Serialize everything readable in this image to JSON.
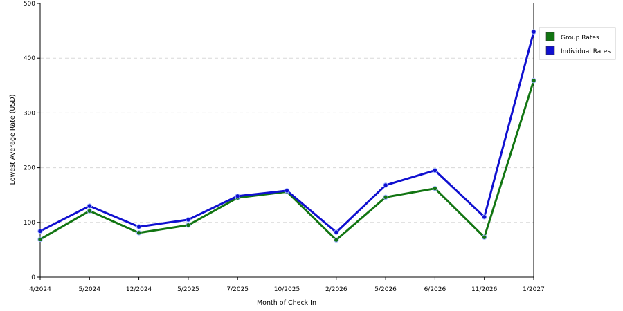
{
  "chart_data": {
    "type": "line",
    "title": "",
    "xlabel": "Month of Check In",
    "ylabel": "Lowest Average Rate (USD)",
    "categories": [
      "4/2024",
      "5/2024",
      "12/2024",
      "5/2025",
      "7/2025",
      "10/2025",
      "2/2026",
      "5/2026",
      "6/2026",
      "11/2026",
      "1/2027"
    ],
    "ylim": [
      0,
      500
    ],
    "yticks": [
      "0",
      "100",
      "200",
      "300",
      "400",
      "500"
    ],
    "grid": true,
    "legend_position": "right",
    "series": [
      {
        "name": "Group Rates",
        "color": "#127512",
        "values": [
          69,
          121,
          81,
          95,
          145,
          156,
          68,
          146,
          162,
          73,
          359
        ]
      },
      {
        "name": "Individual Rates",
        "color": "#1010d0",
        "values": [
          84,
          130,
          92,
          105,
          148,
          158,
          82,
          168,
          195,
          110,
          448
        ]
      }
    ]
  }
}
